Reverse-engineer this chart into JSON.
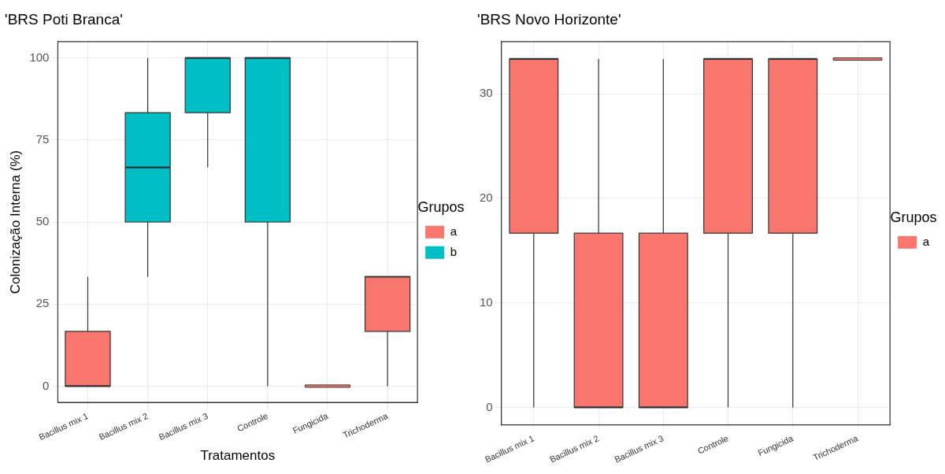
{
  "chart_data": [
    {
      "type": "box",
      "title": "'BRS Poti Branca'",
      "xlabel": "Tratamentos",
      "ylabel": "Colonização Interna (%)",
      "categories": [
        "Bacillus mix 1",
        "Bacillus mix 2",
        "Bacillus mix 3",
        "Controle",
        "Fungicida",
        "Trichoderma"
      ],
      "ylim": [
        -5,
        105
      ],
      "yticks": [
        0,
        25,
        50,
        75,
        100
      ],
      "grid": true,
      "legend": "right",
      "legend_title": "Grupos",
      "series": [
        {
          "name": "a",
          "color": "#f8766d",
          "boxes": [
            {
              "low": 0,
              "q1": 0,
              "median": 0,
              "q3": 16.67,
              "high": 33.33
            },
            null,
            null,
            null,
            {
              "low": 0,
              "q1": 0,
              "median": 0,
              "q3": 0,
              "high": 0
            },
            {
              "low": 0,
              "q1": 16.67,
              "median": 33.33,
              "q3": 33.33,
              "high": 33.33
            }
          ]
        },
        {
          "name": "b",
          "color": "#00bfc4",
          "boxes": [
            null,
            {
              "low": 33.33,
              "q1": 50,
              "median": 66.67,
              "q3": 83.33,
              "high": 100
            },
            {
              "low": 66.67,
              "q1": 83.33,
              "median": 100,
              "q3": 100,
              "high": 100
            },
            {
              "low": 0,
              "q1": 50,
              "median": 100,
              "q3": 100,
              "high": 100
            },
            null,
            null
          ]
        }
      ]
    },
    {
      "type": "box",
      "title": "'BRS Novo Horizonte'",
      "categories": [
        "Bacillus mix 1",
        "Bacillus mix 2",
        "Bacillus mix 3",
        "Controle",
        "Fungicida",
        "Trichoderma"
      ],
      "ylim": [
        -1.67,
        35
      ],
      "yticks": [
        0,
        10,
        20,
        30
      ],
      "grid": true,
      "legend": "right",
      "legend_title": "Grupos",
      "series": [
        {
          "name": "a",
          "color": "#f8766d",
          "boxes": [
            {
              "low": 0,
              "q1": 16.67,
              "median": 33.33,
              "q3": 33.33,
              "high": 33.33
            },
            {
              "low": 0,
              "q1": 0,
              "median": 0,
              "q3": 16.67,
              "high": 33.33
            },
            {
              "low": 0,
              "q1": 0,
              "median": 0,
              "q3": 16.67,
              "high": 33.33
            },
            {
              "low": 0,
              "q1": 16.67,
              "median": 33.33,
              "q3": 33.33,
              "high": 33.33
            },
            {
              "low": 0,
              "q1": 16.67,
              "median": 33.33,
              "q3": 33.33,
              "high": 33.33
            },
            {
              "low": 33.33,
              "q1": 33.33,
              "median": 33.33,
              "q3": 33.33,
              "high": 33.33
            }
          ]
        }
      ]
    }
  ]
}
